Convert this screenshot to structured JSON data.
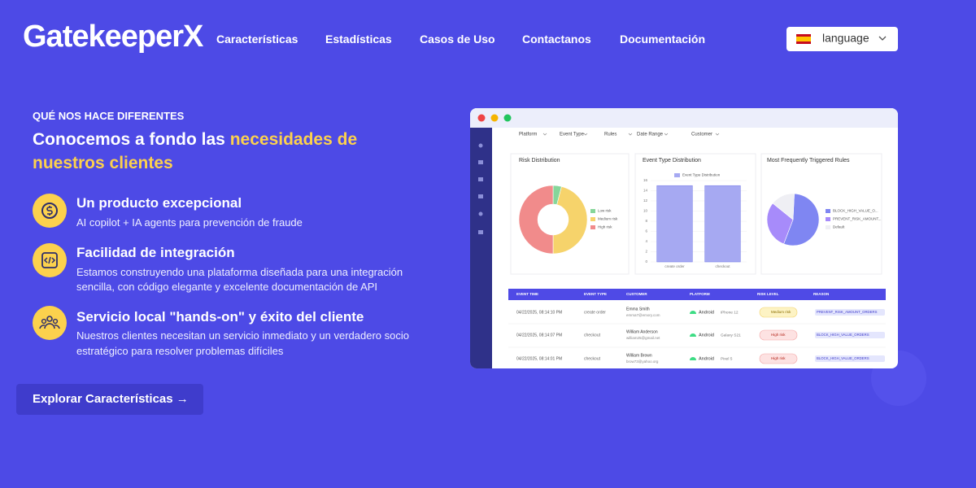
{
  "nav": {
    "logo": "GatekeeperX",
    "links": [
      "Características",
      "Estadísticas",
      "Casos de Uso",
      "Contactanos",
      "Documentación"
    ],
    "language": "language"
  },
  "hero": {
    "eyebrow": "QUÉ NOS HACE DIFERENTES",
    "headline": "Conocemos a fondo las",
    "headline_highlight_1": "necesidades de",
    "headline_highlight_2": "nuestros clientes",
    "features": [
      {
        "title": "Un producto excepcional",
        "lines": [
          "AI copilot + IA agents para prevención de fraude"
        ]
      },
      {
        "title": "Facilidad de integración",
        "lines": [
          "Estamos construyendo una plataforma diseñada para una integración",
          "sencilla, con código elegante y excelente documentación de API"
        ]
      },
      {
        "title": "Servicio local \"hands-on\" y éxito del cliente",
        "lines": [
          "Nuestros clientes necesitan un servicio inmediato y un verdadero socio",
          "estratégico para resolver problemas difíciles"
        ]
      }
    ],
    "cta": "Explorar Características →"
  },
  "dashboard": {
    "filters": [
      "Platform",
      "Event Type",
      "Rules",
      "Date Range",
      "Customer"
    ],
    "charts": [
      {
        "type": "pie",
        "title": "Risk Distribution",
        "donut": true,
        "categories": [
          "Low risk",
          "Medium risk",
          "High risk"
        ],
        "values": [
          4,
          46,
          50
        ],
        "colors": [
          "#86d69a",
          "#f6d36b",
          "#f18b8b"
        ]
      },
      {
        "type": "bar",
        "title": "Event Type Distribution",
        "legend": "Event Type Distribution",
        "categories": [
          "create order",
          "checkout"
        ],
        "values": [
          15,
          15
        ],
        "color": "#a6a9f2",
        "ylim": [
          0,
          16
        ],
        "yticks": [
          0,
          2,
          4,
          6,
          8,
          10,
          12,
          14,
          16
        ]
      },
      {
        "type": "pie",
        "title": "Most Frequently Triggered Rules",
        "donut": false,
        "categories": [
          "BLOCK_HIGH_VALUE_O...",
          "PREVENT_RISK_AMOUNT...",
          "Default"
        ],
        "values": [
          55,
          30,
          15
        ],
        "colors": [
          "#7f86f2",
          "#a78bfa",
          "#efeff4"
        ]
      }
    ],
    "table": {
      "headers": [
        "EVENT TIME",
        "EVENT TYPE",
        "CUSTOMER",
        "PLATFORM",
        "RISK LEVEL",
        "REASON"
      ],
      "rows": [
        [
          "04/22/2025, 08:14:10 PM",
          "create order",
          "Emma Smith",
          "emma7@emory.com",
          "Android",
          "iPhone 12",
          "Medium risk",
          "PREVENT_RISK_AMOUNT_ORDERS"
        ],
        [
          "04/22/2025, 08:14:07 PM",
          "checkout",
          "William Anderson",
          "william25@gmail.net",
          "Android",
          "Galaxy S21",
          "High risk",
          "BLOCK_HIGH_VALUE_ORDERS"
        ],
        [
          "04/22/2025, 08:14:01 PM",
          "checkout",
          "William Brown",
          "brow73@yahoo.org",
          "Android",
          "Pixel 5",
          "High risk",
          "BLOCK_HIGH_VALUE_ORDERS"
        ]
      ]
    }
  }
}
